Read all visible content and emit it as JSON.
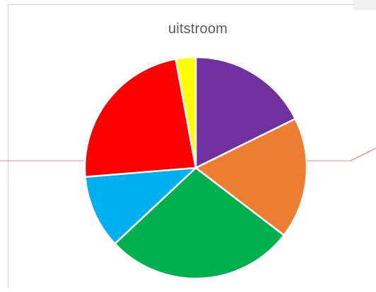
{
  "chart_data": {
    "type": "pie",
    "title": "uitstroom",
    "slices": [
      {
        "value": 17.7,
        "color": "#7030A0",
        "color_name": "purple"
      },
      {
        "value": 17.7,
        "color": "#ED7D31",
        "color_name": "orange"
      },
      {
        "value": 27.6,
        "color": "#00B050",
        "color_name": "green"
      },
      {
        "value": 10.7,
        "color": "#00B0F0",
        "color_name": "light blue"
      },
      {
        "value": 23.4,
        "color": "#FF0000",
        "color_name": "red"
      },
      {
        "value": 2.9,
        "color": "#FFFF00",
        "color_name": "yellow"
      }
    ],
    "start_angle_deg": 0,
    "direction": "clockwise",
    "slice_separator_color": "#FFFFFF",
    "legend": "none",
    "data_labels": "none"
  },
  "annotations": {
    "connector_line_color": "#E0605A"
  }
}
